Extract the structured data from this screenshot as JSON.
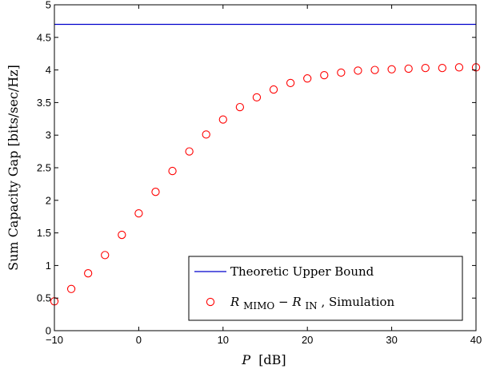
{
  "chart_data": {
    "type": "scatter",
    "xlabel": "P",
    "xlabel_unit": "[dB]",
    "ylabel": "Sum Capacity Gap [bits/sec/Hz]",
    "xlim": [
      -10,
      40
    ],
    "ylim": [
      0,
      5
    ],
    "xticks": [
      -10,
      0,
      10,
      20,
      30,
      40
    ],
    "xtick_labels": [
      "−10",
      "0",
      "10",
      "20",
      "30",
      "40"
    ],
    "yticks": [
      0,
      0.5,
      1,
      1.5,
      2,
      2.5,
      3,
      3.5,
      4,
      4.5,
      5
    ],
    "ytick_labels": [
      "0",
      "0.5",
      "1",
      "1.5",
      "2",
      "2.5",
      "3",
      "3.5",
      "4",
      "4.5",
      "5"
    ],
    "legend_position": "bottom-right",
    "series": [
      {
        "name": "Theoretic Upper Bound",
        "kind": "line",
        "color": "#0000cc",
        "x": [
          -10,
          40
        ],
        "y": [
          4.7,
          4.7
        ]
      },
      {
        "name_parts": {
          "r1": "R",
          "s1": "MIMO",
          "sep": "− ",
          "r2": "R",
          "s2": "IN",
          "tail": ", Simulation"
        },
        "kind": "markers",
        "marker": "circle",
        "color": "#ff0000",
        "x": [
          -10,
          -8,
          -6,
          -4,
          -2,
          0,
          2,
          4,
          6,
          8,
          10,
          12,
          14,
          16,
          18,
          20,
          22,
          24,
          26,
          28,
          30,
          32,
          34,
          36,
          38,
          40
        ],
        "y": [
          0.45,
          0.64,
          0.88,
          1.16,
          1.47,
          1.8,
          2.13,
          2.45,
          2.75,
          3.01,
          3.24,
          3.43,
          3.58,
          3.7,
          3.8,
          3.87,
          3.92,
          3.96,
          3.99,
          4.0,
          4.01,
          4.02,
          4.03,
          4.03,
          4.04,
          4.04
        ]
      }
    ]
  }
}
